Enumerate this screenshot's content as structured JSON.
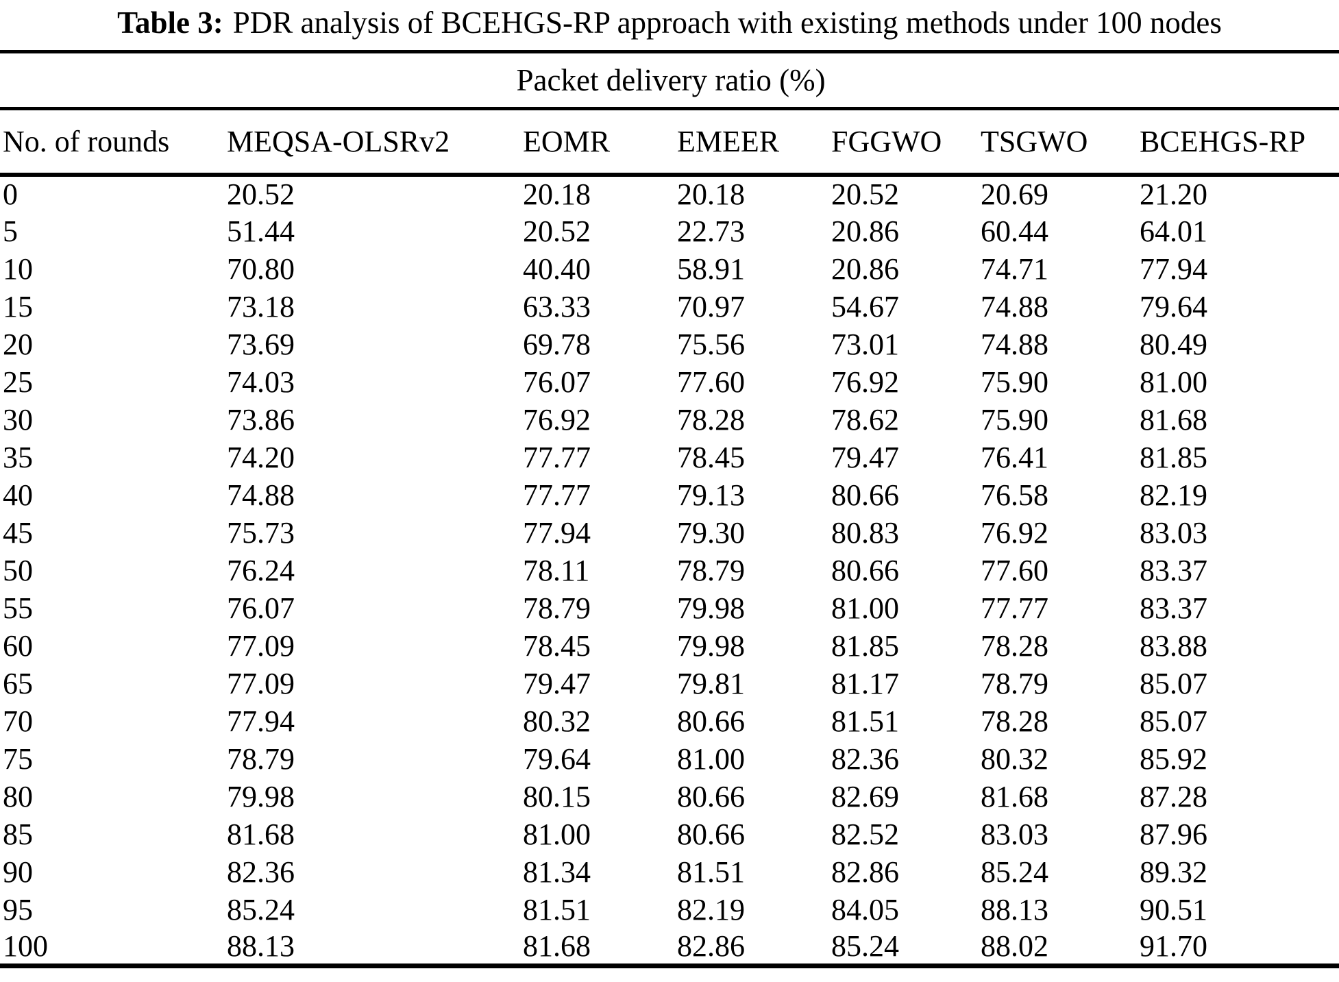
{
  "table": {
    "caption": {
      "label": "Table 3:",
      "text": "PDR analysis of BCEHGS-RP approach with existing methods under 100 nodes"
    },
    "group_header": "Packet delivery ratio (%)",
    "columns": [
      "No. of rounds",
      "MEQSA-OLSRv2",
      "EOMR",
      "EMEER",
      "FGGWO",
      "TSGWO",
      "BCEHGS-RP"
    ],
    "rows": [
      [
        "0",
        "20.52",
        "20.18",
        "20.18",
        "20.52",
        "20.69",
        "21.20"
      ],
      [
        "5",
        "51.44",
        "20.52",
        "22.73",
        "20.86",
        "60.44",
        "64.01"
      ],
      [
        "10",
        "70.80",
        "40.40",
        "58.91",
        "20.86",
        "74.71",
        "77.94"
      ],
      [
        "15",
        "73.18",
        "63.33",
        "70.97",
        "54.67",
        "74.88",
        "79.64"
      ],
      [
        "20",
        "73.69",
        "69.78",
        "75.56",
        "73.01",
        "74.88",
        "80.49"
      ],
      [
        "25",
        "74.03",
        "76.07",
        "77.60",
        "76.92",
        "75.90",
        "81.00"
      ],
      [
        "30",
        "73.86",
        "76.92",
        "78.28",
        "78.62",
        "75.90",
        "81.68"
      ],
      [
        "35",
        "74.20",
        "77.77",
        "78.45",
        "79.47",
        "76.41",
        "81.85"
      ],
      [
        "40",
        "74.88",
        "77.77",
        "79.13",
        "80.66",
        "76.58",
        "82.19"
      ],
      [
        "45",
        "75.73",
        "77.94",
        "79.30",
        "80.83",
        "76.92",
        "83.03"
      ],
      [
        "50",
        "76.24",
        "78.11",
        "78.79",
        "80.66",
        "77.60",
        "83.37"
      ],
      [
        "55",
        "76.07",
        "78.79",
        "79.98",
        "81.00",
        "77.77",
        "83.37"
      ],
      [
        "60",
        "77.09",
        "78.45",
        "79.98",
        "81.85",
        "78.28",
        "83.88"
      ],
      [
        "65",
        "77.09",
        "79.47",
        "79.81",
        "81.17",
        "78.79",
        "85.07"
      ],
      [
        "70",
        "77.94",
        "80.32",
        "80.66",
        "81.51",
        "78.28",
        "85.07"
      ],
      [
        "75",
        "78.79",
        "79.64",
        "81.00",
        "82.36",
        "80.32",
        "85.92"
      ],
      [
        "80",
        "79.98",
        "80.15",
        "80.66",
        "82.69",
        "81.68",
        "87.28"
      ],
      [
        "85",
        "81.68",
        "81.00",
        "80.66",
        "82.52",
        "83.03",
        "87.96"
      ],
      [
        "90",
        "82.36",
        "81.34",
        "81.51",
        "82.86",
        "85.24",
        "89.32"
      ],
      [
        "95",
        "85.24",
        "81.51",
        "82.19",
        "84.05",
        "88.13",
        "90.51"
      ],
      [
        "100",
        "88.13",
        "81.68",
        "82.86",
        "85.24",
        "88.02",
        "91.70"
      ]
    ]
  },
  "chart_data": {
    "type": "table",
    "title": "Table 3: PDR analysis of BCEHGS-RP approach with existing methods under 100 nodes",
    "group_header": "Packet delivery ratio (%)",
    "xlabel": "No. of rounds",
    "ylabel": "Packet delivery ratio (%)",
    "categories": [
      0,
      5,
      10,
      15,
      20,
      25,
      30,
      35,
      40,
      45,
      50,
      55,
      60,
      65,
      70,
      75,
      80,
      85,
      90,
      95,
      100
    ],
    "series": [
      {
        "name": "MEQSA-OLSRv2",
        "values": [
          20.52,
          51.44,
          70.8,
          73.18,
          73.69,
          74.03,
          73.86,
          74.2,
          74.88,
          75.73,
          76.24,
          76.07,
          77.09,
          77.09,
          77.94,
          78.79,
          79.98,
          81.68,
          82.36,
          85.24,
          88.13
        ]
      },
      {
        "name": "EOMR",
        "values": [
          20.18,
          20.52,
          40.4,
          63.33,
          69.78,
          76.07,
          76.92,
          77.77,
          77.77,
          77.94,
          78.11,
          78.79,
          78.45,
          79.47,
          80.32,
          79.64,
          80.15,
          81.0,
          81.34,
          81.51,
          81.68
        ]
      },
      {
        "name": "EMEER",
        "values": [
          20.18,
          22.73,
          58.91,
          70.97,
          75.56,
          77.6,
          78.28,
          78.45,
          79.13,
          79.3,
          78.79,
          79.98,
          79.98,
          79.81,
          80.66,
          81.0,
          80.66,
          80.66,
          81.51,
          82.19,
          82.86
        ]
      },
      {
        "name": "FGGWO",
        "values": [
          20.52,
          20.86,
          20.86,
          54.67,
          73.01,
          76.92,
          78.62,
          79.47,
          80.66,
          80.83,
          80.66,
          81.0,
          81.85,
          81.17,
          81.51,
          82.36,
          82.69,
          82.52,
          82.86,
          84.05,
          85.24
        ]
      },
      {
        "name": "TSGWO",
        "values": [
          20.69,
          60.44,
          74.71,
          74.88,
          74.88,
          75.9,
          75.9,
          76.41,
          76.58,
          76.92,
          77.6,
          77.77,
          78.28,
          78.79,
          78.28,
          80.32,
          81.68,
          83.03,
          85.24,
          88.13,
          88.02
        ]
      },
      {
        "name": "BCEHGS-RP",
        "values": [
          21.2,
          64.01,
          77.94,
          79.64,
          80.49,
          81.0,
          81.68,
          81.85,
          82.19,
          83.03,
          83.37,
          83.37,
          83.88,
          85.07,
          85.07,
          85.92,
          87.28,
          87.96,
          89.32,
          90.51,
          91.7
        ]
      }
    ],
    "legend_position": "none",
    "grid": false
  }
}
